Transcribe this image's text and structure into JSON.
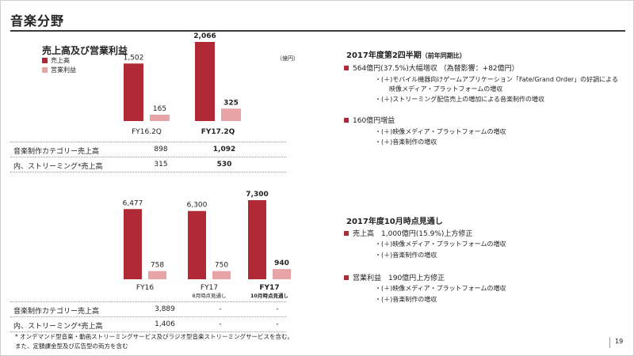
{
  "page": {
    "title": "音楽分野",
    "subtitle": "売上高及び営業利益",
    "unit": "（億円）",
    "page_number": "19",
    "footnote_line1": "* オンデマンド型音楽・動画ストリーミングサービス及びラジオ型音楽ストリーミングサービスを含む。",
    "footnote_line2": "また、定額課金型及び広告型の両方を含む"
  },
  "colors": {
    "sales": "#b02a36",
    "op": "#e8a3a6"
  },
  "chart_data": [
    {
      "type": "bar",
      "categories": [
        "FY16.2Q",
        "FY17.2Q"
      ],
      "category_sublabels": [
        "",
        ""
      ],
      "category_bold": [
        false,
        true
      ],
      "series": [
        {
          "name": "売上高",
          "values": [
            1502,
            2066
          ],
          "labels": [
            "1,502",
            "2,066"
          ]
        },
        {
          "name": "営業利益",
          "values": [
            165,
            325
          ],
          "labels": [
            "165",
            "325"
          ]
        }
      ],
      "value_bold": [
        false,
        true
      ],
      "legend": "top-left",
      "grid": false
    },
    {
      "type": "bar",
      "categories": [
        "FY16",
        "FY17",
        "FY17"
      ],
      "category_sublabels": [
        "",
        "8月時点見通し",
        "10月時点見通し"
      ],
      "category_bold": [
        false,
        false,
        true
      ],
      "series": [
        {
          "values": [
            6477,
            6300,
            7300
          ],
          "labels": [
            "6,477",
            "6,300",
            "7,300"
          ]
        },
        {
          "values": [
            758,
            750,
            940
          ],
          "labels": [
            "758",
            "750",
            "940"
          ]
        }
      ],
      "value_bold": [
        false,
        false,
        true
      ],
      "grid": false
    }
  ],
  "table1": {
    "rows": [
      {
        "label": "音楽制作カテゴリー売上高",
        "values": [
          "898",
          "1,092"
        ]
      },
      {
        "label": "内、ストリーミング*売上高",
        "values": [
          "315",
          "530"
        ]
      }
    ]
  },
  "table2": {
    "rows": [
      {
        "label": "音楽制作カテゴリー売上高",
        "values": [
          "3,889",
          "-",
          "-"
        ]
      },
      {
        "label": "内、ストリーミング*売上高",
        "values": [
          "1,406",
          "-",
          "-"
        ]
      }
    ]
  },
  "right": {
    "section1": {
      "heading": "2017年度第2四半期",
      "heading_small": "（前年同期比）",
      "bullet1": "564億円(37.5%)大幅増収 （為替影響：+82億円）",
      "bullet1_lines": [
        "・(＋)モバイル機器向けゲームアプリケーション「Fate/Grand Order」の好調による",
        "映像メディア・プラットフォームの増収",
        "・(＋)ストリーミング配信売上の増加による音楽制作の増収"
      ],
      "bullet2": "160億円増益",
      "bullet2_lines": [
        "・(＋)映像メディア・プラットフォームの増収",
        "・(＋)音楽制作の増収"
      ]
    },
    "section2": {
      "heading": "2017年度10月時点見通し",
      "bullet1": "売上高　1,000億円(15.9%)上方修正",
      "bullet1_lines": [
        "・(＋)映像メディア・プラットフォームの増収",
        "・(＋)音楽制作の増収"
      ],
      "bullet2": "営業利益　190億円上方修正",
      "bullet2_lines": [
        "・(＋)映像メディア・プラットフォームの増収",
        "・(＋)音楽制作の増収"
      ]
    }
  }
}
